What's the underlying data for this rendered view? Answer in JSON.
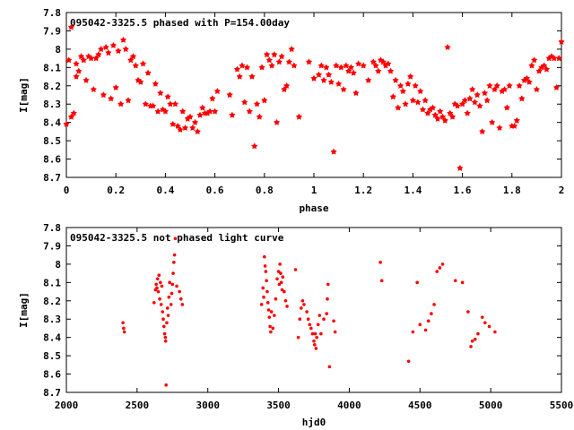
{
  "chart_data": [
    {
      "type": "scatter",
      "title": "095042-3325.5 phased with P=154.00day",
      "xlabel": "phase",
      "ylabel": "I[mag]",
      "xlim": [
        0,
        2
      ],
      "ylim": [
        8.7,
        7.8
      ],
      "y_inverted": true,
      "x_ticks": [
        "0",
        "0.2",
        "0.4",
        "0.6",
        "0.8",
        "1",
        "1.2",
        "1.4",
        "1.6",
        "1.8",
        "2"
      ],
      "y_ticks": [
        "7.8",
        "7.9",
        "8",
        "8.1",
        "8.2",
        "8.3",
        "8.4",
        "8.5",
        "8.6",
        "8.7"
      ],
      "marker": "filled-star",
      "color": "#ff0000",
      "points": [
        [
          0.0,
          8.41
        ],
        [
          0.01,
          8.06
        ],
        [
          0.02,
          7.88
        ],
        [
          0.02,
          8.37
        ],
        [
          0.03,
          8.35
        ],
        [
          0.04,
          8.08
        ],
        [
          0.04,
          8.15
        ],
        [
          0.05,
          8.12
        ],
        [
          0.06,
          8.04
        ],
        [
          0.07,
          8.06
        ],
        [
          0.08,
          8.17
        ],
        [
          0.09,
          8.04
        ],
        [
          0.1,
          8.05
        ],
        [
          0.11,
          8.22
        ],
        [
          0.12,
          8.05
        ],
        [
          0.13,
          8.03
        ],
        [
          0.14,
          8.0
        ],
        [
          0.15,
          8.25
        ],
        [
          0.16,
          7.99
        ],
        [
          0.17,
          8.02
        ],
        [
          0.18,
          8.27
        ],
        [
          0.19,
          7.98
        ],
        [
          0.2,
          8.21
        ],
        [
          0.21,
          8.01
        ],
        [
          0.22,
          8.3
        ],
        [
          0.23,
          7.95
        ],
        [
          0.24,
          8.0
        ],
        [
          0.25,
          8.28
        ],
        [
          0.26,
          8.06
        ],
        [
          0.27,
          8.04
        ],
        [
          0.28,
          8.09
        ],
        [
          0.29,
          8.17
        ],
        [
          0.3,
          8.18
        ],
        [
          0.31,
          8.08
        ],
        [
          0.32,
          8.3
        ],
        [
          0.33,
          8.13
        ],
        [
          0.34,
          8.31
        ],
        [
          0.35,
          8.31
        ],
        [
          0.36,
          8.19
        ],
        [
          0.37,
          8.34
        ],
        [
          0.38,
          8.24
        ],
        [
          0.39,
          8.33
        ],
        [
          0.4,
          8.34
        ],
        [
          0.41,
          8.26
        ],
        [
          0.42,
          8.3
        ],
        [
          0.43,
          8.41
        ],
        [
          0.44,
          8.3
        ],
        [
          0.45,
          8.42
        ],
        [
          0.46,
          8.44
        ],
        [
          0.47,
          8.34
        ],
        [
          0.48,
          8.43
        ],
        [
          0.49,
          8.38
        ],
        [
          0.5,
          8.37
        ],
        [
          0.51,
          8.43
        ],
        [
          0.52,
          8.4
        ],
        [
          0.53,
          8.45
        ],
        [
          0.54,
          8.36
        ],
        [
          0.55,
          8.32
        ],
        [
          0.56,
          8.35
        ],
        [
          0.57,
          8.35
        ],
        [
          0.58,
          8.34
        ],
        [
          0.59,
          8.27
        ],
        [
          0.6,
          8.34
        ],
        [
          0.61,
          8.23
        ],
        [
          0.66,
          8.25
        ],
        [
          0.67,
          8.36
        ],
        [
          0.69,
          8.11
        ],
        [
          0.7,
          8.15
        ],
        [
          0.71,
          8.09
        ],
        [
          0.72,
          8.29
        ],
        [
          0.73,
          8.1
        ],
        [
          0.74,
          8.34
        ],
        [
          0.75,
          8.15
        ],
        [
          0.76,
          8.53
        ],
        [
          0.77,
          8.3
        ],
        [
          0.78,
          8.37
        ],
        [
          0.79,
          8.1
        ],
        [
          0.8,
          8.28
        ],
        [
          0.81,
          8.03
        ],
        [
          0.82,
          8.06
        ],
        [
          0.83,
          8.09
        ],
        [
          0.84,
          8.03
        ],
        [
          0.85,
          8.4
        ],
        [
          0.86,
          8.07
        ],
        [
          0.87,
          8.04
        ],
        [
          0.88,
          8.22
        ],
        [
          0.89,
          8.2
        ],
        [
          0.9,
          8.07
        ],
        [
          0.91,
          8.0
        ],
        [
          0.92,
          8.09
        ],
        [
          0.94,
          8.37
        ],
        [
          0.98,
          8.07
        ],
        [
          1.0,
          8.16
        ],
        [
          1.02,
          8.14
        ],
        [
          1.03,
          8.09
        ],
        [
          1.04,
          8.17
        ],
        [
          1.05,
          8.1
        ],
        [
          1.06,
          8.14
        ],
        [
          1.07,
          8.18
        ],
        [
          1.08,
          8.56
        ],
        [
          1.09,
          8.09
        ],
        [
          1.1,
          8.19
        ],
        [
          1.11,
          8.1
        ],
        [
          1.12,
          8.22
        ],
        [
          1.13,
          8.09
        ],
        [
          1.14,
          8.12
        ],
        [
          1.15,
          8.1
        ],
        [
          1.16,
          8.13
        ],
        [
          1.17,
          8.24
        ],
        [
          1.18,
          8.08
        ],
        [
          1.2,
          8.09
        ],
        [
          1.22,
          8.17
        ],
        [
          1.24,
          8.07
        ],
        [
          1.25,
          8.09
        ],
        [
          1.26,
          8.12
        ],
        [
          1.27,
          8.06
        ],
        [
          1.28,
          8.07
        ],
        [
          1.29,
          8.09
        ],
        [
          1.3,
          8.08
        ],
        [
          1.31,
          8.12
        ],
        [
          1.32,
          8.26
        ],
        [
          1.33,
          8.17
        ],
        [
          1.34,
          8.32
        ],
        [
          1.35,
          8.2
        ],
        [
          1.36,
          8.23
        ],
        [
          1.37,
          8.3
        ],
        [
          1.38,
          8.19
        ],
        [
          1.39,
          8.15
        ],
        [
          1.4,
          8.28
        ],
        [
          1.41,
          8.2
        ],
        [
          1.42,
          8.29
        ],
        [
          1.43,
          8.23
        ],
        [
          1.44,
          8.33
        ],
        [
          1.45,
          8.28
        ],
        [
          1.46,
          8.35
        ],
        [
          1.47,
          8.33
        ],
        [
          1.48,
          8.32
        ],
        [
          1.49,
          8.36
        ],
        [
          1.5,
          8.38
        ],
        [
          1.51,
          8.34
        ],
        [
          1.52,
          8.37
        ],
        [
          1.53,
          8.39
        ],
        [
          1.54,
          7.99
        ],
        [
          1.55,
          8.35
        ],
        [
          1.56,
          8.37
        ],
        [
          1.57,
          8.3
        ],
        [
          1.58,
          8.31
        ],
        [
          1.59,
          8.65
        ],
        [
          1.6,
          8.3
        ],
        [
          1.61,
          8.28
        ],
        [
          1.62,
          8.35
        ],
        [
          1.63,
          8.27
        ],
        [
          1.64,
          8.22
        ],
        [
          1.65,
          8.29
        ],
        [
          1.66,
          8.25
        ],
        [
          1.67,
          8.31
        ],
        [
          1.68,
          8.45
        ],
        [
          1.69,
          8.24
        ],
        [
          1.7,
          8.28
        ],
        [
          1.71,
          8.2
        ],
        [
          1.72,
          8.4
        ],
        [
          1.73,
          8.22
        ],
        [
          1.74,
          8.2
        ],
        [
          1.75,
          8.43
        ],
        [
          1.76,
          8.23
        ],
        [
          1.77,
          8.22
        ],
        [
          1.78,
          8.32
        ],
        [
          1.79,
          8.2
        ],
        [
          1.8,
          8.42
        ],
        [
          1.81,
          8.42
        ],
        [
          1.82,
          8.39
        ],
        [
          1.83,
          8.2
        ],
        [
          1.84,
          8.27
        ],
        [
          1.85,
          8.17
        ],
        [
          1.86,
          8.16
        ],
        [
          1.87,
          8.18
        ],
        [
          1.88,
          8.09
        ],
        [
          1.89,
          8.06
        ],
        [
          1.9,
          8.22
        ],
        [
          1.91,
          8.12
        ],
        [
          1.92,
          8.1
        ],
        [
          1.93,
          8.09
        ],
        [
          1.94,
          8.11
        ],
        [
          1.95,
          8.05
        ],
        [
          1.96,
          8.04
        ],
        [
          1.97,
          8.05
        ],
        [
          1.98,
          8.21
        ],
        [
          1.99,
          8.05
        ],
        [
          2.0,
          7.96
        ]
      ]
    },
    {
      "type": "scatter",
      "title": "095042-3325.5 not phased light curve",
      "xlabel": "hjd0",
      "ylabel": "I[mag]",
      "xlim": [
        2000,
        5500
      ],
      "ylim": [
        8.7,
        7.8
      ],
      "y_inverted": true,
      "x_ticks": [
        "2000",
        "2500",
        "3000",
        "3500",
        "4000",
        "4500",
        "5000",
        "5500"
      ],
      "y_ticks": [
        "7.8",
        "7.9",
        "8",
        "8.1",
        "8.2",
        "8.3",
        "8.4",
        "8.5",
        "8.6",
        "8.7"
      ],
      "marker": "dot",
      "color": "#ff0000",
      "points": [
        [
          2400,
          8.32
        ],
        [
          2405,
          8.35
        ],
        [
          2410,
          8.37
        ],
        [
          2620,
          8.21
        ],
        [
          2630,
          8.14
        ],
        [
          2635,
          8.11
        ],
        [
          2640,
          8.13
        ],
        [
          2645,
          8.08
        ],
        [
          2650,
          8.15
        ],
        [
          2655,
          8.06
        ],
        [
          2660,
          8.19
        ],
        [
          2665,
          8.1
        ],
        [
          2670,
          8.22
        ],
        [
          2675,
          8.12
        ],
        [
          2680,
          8.26
        ],
        [
          2685,
          8.3
        ],
        [
          2690,
          8.34
        ],
        [
          2695,
          8.38
        ],
        [
          2700,
          8.4
        ],
        [
          2702,
          8.42
        ],
        [
          2705,
          8.66
        ],
        [
          2710,
          8.32
        ],
        [
          2715,
          8.24
        ],
        [
          2720,
          8.28
        ],
        [
          2725,
          8.18
        ],
        [
          2730,
          8.1
        ],
        [
          2740,
          8.22
        ],
        [
          2745,
          8.16
        ],
        [
          2750,
          8.11
        ],
        [
          2755,
          8.05
        ],
        [
          2760,
          7.99
        ],
        [
          2765,
          7.95
        ],
        [
          2770,
          7.86
        ],
        [
          2780,
          8.12
        ],
        [
          2800,
          8.15
        ],
        [
          2810,
          8.19
        ],
        [
          2820,
          8.22
        ],
        [
          3380,
          8.22
        ],
        [
          3390,
          8.13
        ],
        [
          3395,
          8.18
        ],
        [
          3400,
          7.96
        ],
        [
          3405,
          8.01
        ],
        [
          3410,
          8.04
        ],
        [
          3415,
          8.09
        ],
        [
          3420,
          8.15
        ],
        [
          3425,
          8.21
        ],
        [
          3430,
          8.25
        ],
        [
          3435,
          8.29
        ],
        [
          3440,
          8.34
        ],
        [
          3445,
          8.37
        ],
        [
          3450,
          8.26
        ],
        [
          3460,
          8.35
        ],
        [
          3470,
          8.28
        ],
        [
          3480,
          8.19
        ],
        [
          3490,
          8.08
        ],
        [
          3500,
          8.04
        ],
        [
          3505,
          8.11
        ],
        [
          3510,
          8.0
        ],
        [
          3515,
          8.05
        ],
        [
          3520,
          8.1
        ],
        [
          3525,
          8.14
        ],
        [
          3530,
          8.07
        ],
        [
          3540,
          8.15
        ],
        [
          3550,
          8.2
        ],
        [
          3560,
          8.23
        ],
        [
          3620,
          8.03
        ],
        [
          3640,
          8.4
        ],
        [
          3650,
          8.3
        ],
        [
          3660,
          8.24
        ],
        [
          3670,
          8.2
        ],
        [
          3680,
          8.22
        ],
        [
          3700,
          8.26
        ],
        [
          3710,
          8.3
        ],
        [
          3720,
          8.33
        ],
        [
          3730,
          8.35
        ],
        [
          3740,
          8.38
        ],
        [
          3750,
          8.42
        ],
        [
          3755,
          8.44
        ],
        [
          3760,
          8.38
        ],
        [
          3765,
          8.46
        ],
        [
          3770,
          8.4
        ],
        [
          3780,
          8.33
        ],
        [
          3790,
          8.28
        ],
        [
          3800,
          8.38
        ],
        [
          3820,
          8.3
        ],
        [
          3840,
          8.27
        ],
        [
          3845,
          8.19
        ],
        [
          3850,
          8.11
        ],
        [
          3860,
          8.56
        ],
        [
          3890,
          8.31
        ],
        [
          3900,
          8.37
        ],
        [
          4220,
          7.99
        ],
        [
          4230,
          8.09
        ],
        [
          4420,
          8.53
        ],
        [
          4450,
          8.37
        ],
        [
          4480,
          8.1
        ],
        [
          4500,
          8.33
        ],
        [
          4540,
          8.36
        ],
        [
          4560,
          8.31
        ],
        [
          4580,
          8.27
        ],
        [
          4600,
          8.22
        ],
        [
          4620,
          8.04
        ],
        [
          4640,
          8.02
        ],
        [
          4660,
          8.0
        ],
        [
          4750,
          8.09
        ],
        [
          4800,
          8.1
        ],
        [
          4840,
          8.26
        ],
        [
          4860,
          8.45
        ],
        [
          4870,
          8.42
        ],
        [
          4890,
          8.41
        ],
        [
          4910,
          8.38
        ],
        [
          4940,
          8.29
        ],
        [
          4960,
          8.32
        ],
        [
          4990,
          8.34
        ],
        [
          5030,
          8.37
        ]
      ]
    }
  ]
}
